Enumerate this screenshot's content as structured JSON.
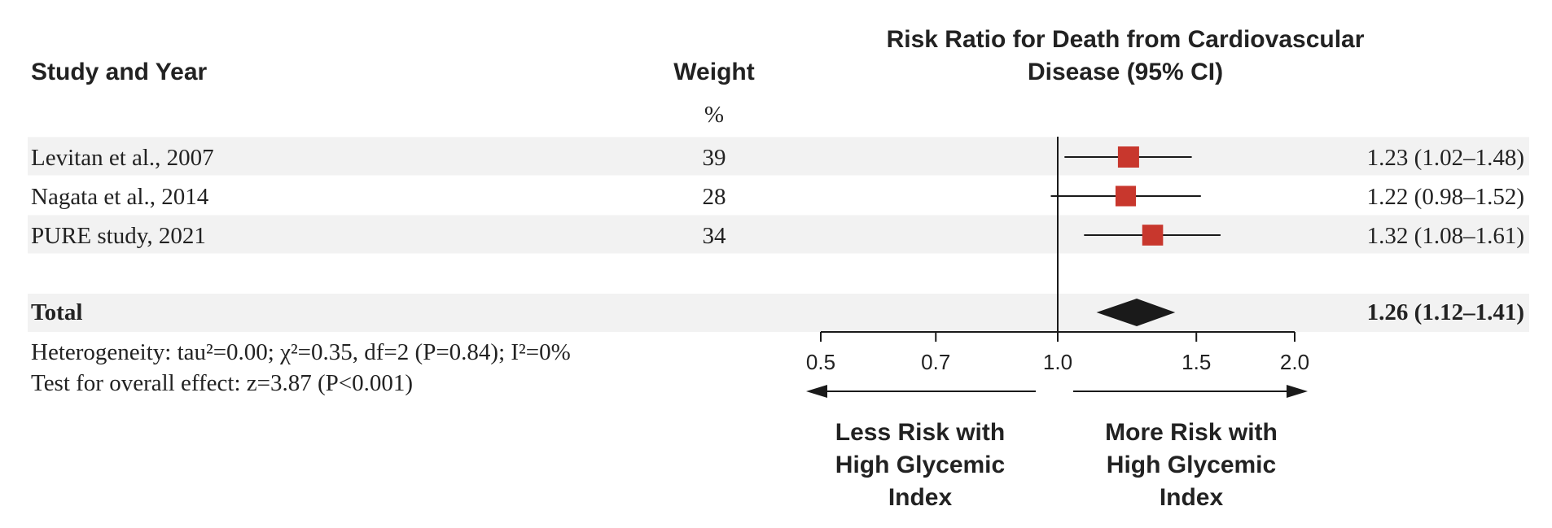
{
  "chart_data": {
    "type": "forest",
    "headers": {
      "study": "Study and Year",
      "weight": "Weight",
      "weight_unit": "%",
      "effect_line1": "Risk Ratio for Death from Cardiovascular",
      "effect_line2": "Disease (95% CI)"
    },
    "studies": [
      {
        "name": "Levitan et al., 2007",
        "weight": "39",
        "rr": 1.23,
        "lo": 1.02,
        "hi": 1.48,
        "text": "1.23 (1.02–1.48)"
      },
      {
        "name": "Nagata et al., 2014",
        "weight": "28",
        "rr": 1.22,
        "lo": 0.98,
        "hi": 1.52,
        "text": "1.22 (0.98–1.52)"
      },
      {
        "name": "PURE study, 2021",
        "weight": "34",
        "rr": 1.32,
        "lo": 1.08,
        "hi": 1.61,
        "text": "1.32 (1.08–1.61)"
      }
    ],
    "total": {
      "name": "Total",
      "rr": 1.26,
      "lo": 1.12,
      "hi": 1.41,
      "text": "1.26 (1.12–1.41)"
    },
    "heterogeneity": "Heterogeneity: tau²=0.00; χ²=0.35, df=2 (P=0.84); I²=0%",
    "overall_effect": "Test for overall effect: z=3.87 (P<0.001)",
    "x_scale": "log",
    "xlim": [
      0.5,
      2.0
    ],
    "ticks": [
      0.5,
      0.7,
      1.0,
      1.5,
      2.0
    ],
    "tick_labels": [
      "0.5",
      "0.7",
      "1.0",
      "1.5",
      "2.0"
    ],
    "reference_line": 1.0,
    "left_direction_label": [
      "Less Risk with",
      "High Glycemic",
      "Index"
    ],
    "right_direction_label": [
      "More Risk with",
      "High Glycemic",
      "Index"
    ],
    "colors": {
      "study_marker": "#c8372d",
      "pooled_diamond": "#1a1a1a",
      "row_band": "#f2f2f2",
      "text": "#222222"
    }
  }
}
